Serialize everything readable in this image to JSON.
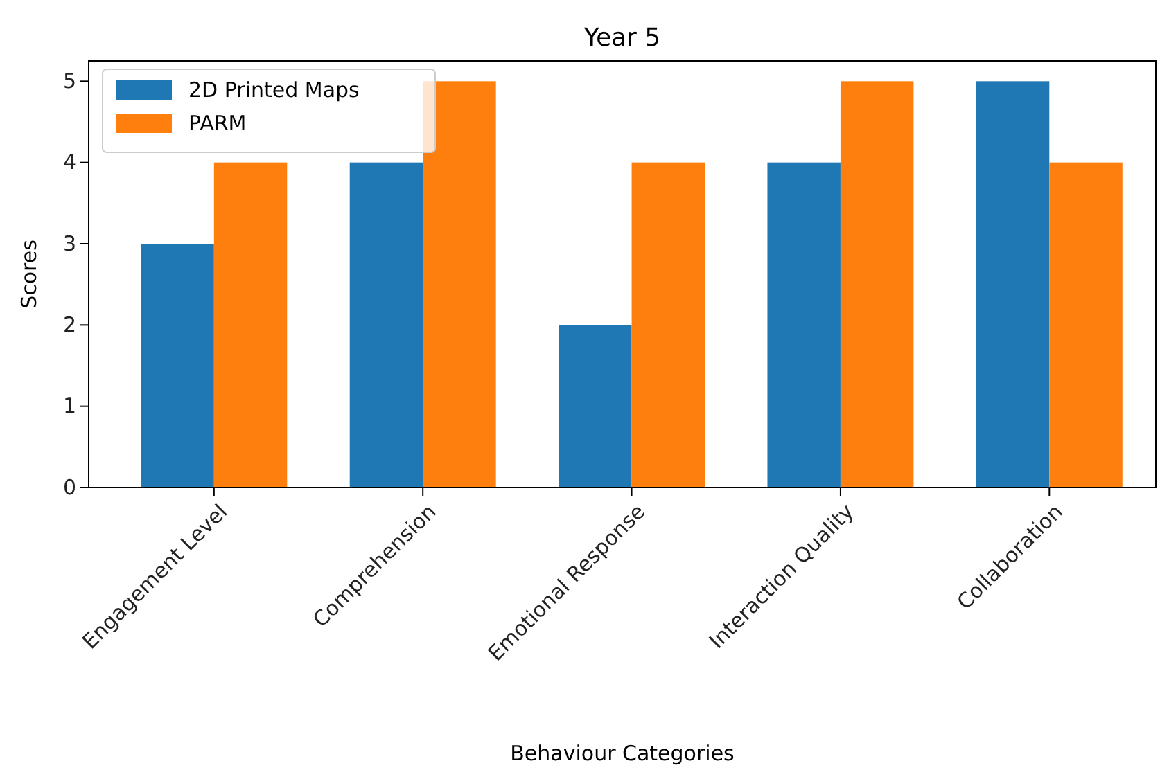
{
  "chart_data": {
    "type": "bar",
    "title": "Year 5",
    "xlabel": "Behaviour Categories",
    "ylabel": "Scores",
    "categories": [
      "Engagement Level",
      "Comprehension",
      "Emotional Response",
      "Interaction Quality",
      "Collaboration"
    ],
    "series": [
      {
        "name": "2D Printed Maps",
        "color": "#1f77b4",
        "values": [
          3,
          4,
          2,
          4,
          5
        ]
      },
      {
        "name": "PARM",
        "color": "#ff7f0e",
        "values": [
          4,
          5,
          4,
          5,
          4
        ]
      }
    ],
    "ylim": [
      0,
      5.25
    ],
    "yticks": [
      0,
      1,
      2,
      3,
      4,
      5
    ],
    "grid": false,
    "legend": "top left"
  }
}
